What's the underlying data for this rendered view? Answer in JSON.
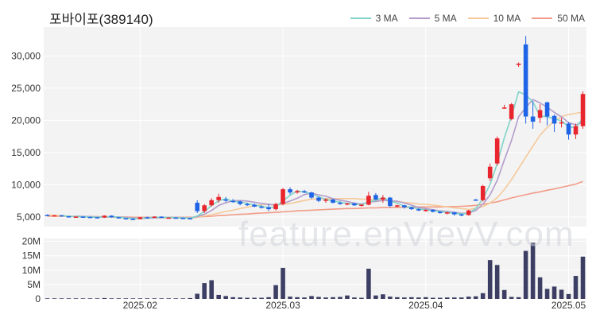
{
  "title": "포바이포(389140)",
  "watermark": "feature.enVievV.com",
  "legend": [
    {
      "label": "3 MA",
      "color": "#7fd3c8"
    },
    {
      "label": "5 MA",
      "color": "#b39ccb"
    },
    {
      "label": "10 MA",
      "color": "#f5c99a"
    },
    {
      "label": "50 MA",
      "color": "#f29b86"
    }
  ],
  "colors": {
    "up": "#e8252d",
    "down": "#1f63e6",
    "volume": "#3c3f63",
    "plot_bg": "#f3f3f3"
  },
  "chart_data": {
    "type": "candlestick",
    "price_axis": {
      "ticks": [
        5000,
        10000,
        15000,
        20000,
        25000,
        30000
      ],
      "tick_labels": [
        "5,000",
        "10,000",
        "15,000",
        "20,000",
        "25,000",
        "30,000"
      ],
      "ylim": [
        3500,
        34500
      ]
    },
    "volume_axis": {
      "ticks": [
        0,
        5,
        10,
        15,
        20
      ],
      "tick_labels": [
        "0",
        "5M",
        "10M",
        "15M",
        "20M"
      ],
      "ylim": [
        0,
        21
      ],
      "unit": "M"
    },
    "x_ticks": [
      {
        "label": "2025.02",
        "index": 13
      },
      {
        "label": "2025.03",
        "index": 33
      },
      {
        "label": "2025.04",
        "index": 53
      },
      {
        "label": "2025.05",
        "index": 73
      }
    ],
    "candles": [
      [
        5300,
        5400,
        5150,
        5200,
        0.2
      ],
      [
        5200,
        5300,
        5100,
        5250,
        0.2
      ],
      [
        5250,
        5300,
        5050,
        5100,
        0.2
      ],
      [
        5100,
        5150,
        4950,
        5000,
        0.2
      ],
      [
        5000,
        5100,
        4900,
        5050,
        0.2
      ],
      [
        5050,
        5100,
        4950,
        5000,
        0.2
      ],
      [
        5000,
        5050,
        4900,
        4950,
        0.2
      ],
      [
        4950,
        5000,
        4850,
        4900,
        0.2
      ],
      [
        4900,
        5250,
        4850,
        5200,
        0.3
      ],
      [
        5200,
        5250,
        4900,
        4950,
        0.2
      ],
      [
        4950,
        5000,
        4750,
        4800,
        0.2
      ],
      [
        4800,
        4850,
        4650,
        4700,
        0.2
      ],
      [
        4700,
        4800,
        4550,
        4650,
        0.2
      ],
      [
        4650,
        5000,
        4600,
        4950,
        0.2
      ],
      [
        4950,
        5050,
        4850,
        4900,
        0.2
      ],
      [
        4900,
        5100,
        4850,
        5050,
        0.2
      ],
      [
        5050,
        5100,
        4800,
        4850,
        0.2
      ],
      [
        4850,
        4950,
        4750,
        4900,
        0.2
      ],
      [
        4900,
        4950,
        4800,
        4850,
        0.2
      ],
      [
        4850,
        4900,
        4750,
        4800,
        0.2
      ],
      [
        4800,
        4850,
        4700,
        4750,
        0.3
      ],
      [
        7200,
        7600,
        5600,
        5900,
        1.8
      ],
      [
        5900,
        7000,
        5600,
        6800,
        5.5
      ],
      [
        6800,
        7900,
        6600,
        7600,
        6.5
      ],
      [
        7600,
        8600,
        7200,
        8100,
        1.4
      ],
      [
        7700,
        8100,
        7300,
        7600,
        1.0
      ],
      [
        7500,
        7800,
        7200,
        7400,
        0.6
      ],
      [
        7400,
        7500,
        6800,
        7000,
        0.5
      ],
      [
        7000,
        7200,
        6700,
        6900,
        0.4
      ],
      [
        6900,
        7100,
        6500,
        6600,
        0.4
      ],
      [
        6600,
        6800,
        6300,
        6500,
        0.4
      ],
      [
        6500,
        7000,
        5900,
        6200,
        0.6
      ],
      [
        6200,
        7200,
        6000,
        7000,
        4.8
      ],
      [
        7000,
        9500,
        6800,
        9300,
        10.8
      ],
      [
        9300,
        9600,
        8500,
        8800,
        0.8
      ],
      [
        8800,
        9200,
        8600,
        9000,
        0.6
      ],
      [
        9000,
        9200,
        8700,
        8800,
        0.5
      ],
      [
        8800,
        8900,
        7800,
        8000,
        1.0
      ],
      [
        8000,
        8200,
        7300,
        7500,
        0.7
      ],
      [
        7500,
        7900,
        7200,
        7700,
        0.5
      ],
      [
        7700,
        7800,
        7100,
        7200,
        0.6
      ],
      [
        7200,
        7400,
        6900,
        7000,
        0.7
      ],
      [
        7000,
        7200,
        6800,
        7100,
        1.2
      ],
      [
        7100,
        7200,
        6700,
        6800,
        0.5
      ],
      [
        6800,
        7000,
        6600,
        6900,
        0.4
      ],
      [
        6900,
        8900,
        6800,
        8300,
        10.5
      ],
      [
        8400,
        8700,
        7600,
        7700,
        1.2
      ],
      [
        7700,
        8400,
        7200,
        8000,
        1.6
      ],
      [
        8000,
        8100,
        6500,
        6700,
        0.8
      ],
      [
        6700,
        6900,
        6400,
        6800,
        0.6
      ],
      [
        6800,
        6900,
        6300,
        6500,
        0.5
      ],
      [
        6500,
        6600,
        6100,
        6200,
        0.6
      ],
      [
        6200,
        6400,
        5900,
        6000,
        0.5
      ],
      [
        6000,
        6200,
        5800,
        6100,
        0.6
      ],
      [
        6100,
        6200,
        5700,
        5800,
        0.4
      ],
      [
        5800,
        5900,
        5500,
        5600,
        0.4
      ],
      [
        5600,
        5800,
        5400,
        5700,
        0.5
      ],
      [
        5700,
        5800,
        5200,
        5400,
        0.5
      ],
      [
        5400,
        5500,
        5100,
        5300,
        0.5
      ],
      [
        5300,
        6100,
        5200,
        6000,
        0.8
      ],
      [
        7700,
        7800,
        7500,
        7600,
        0.9
      ],
      [
        7600,
        10000,
        7400,
        9800,
        2.0
      ],
      [
        11000,
        13300,
        10600,
        12800,
        13.5
      ],
      [
        13300,
        17500,
        13000,
        17200,
        11.8
      ],
      [
        21900,
        22400,
        21800,
        22000,
        3.1
      ],
      [
        20200,
        22700,
        20000,
        22500,
        0.7
      ],
      [
        28600,
        29000,
        28300,
        28800,
        0.6
      ],
      [
        31800,
        33100,
        19500,
        20600,
        16.7
      ],
      [
        20600,
        23000,
        18700,
        19800,
        19.5
      ],
      [
        20400,
        22500,
        19600,
        21600,
        7.5
      ],
      [
        22800,
        22900,
        19200,
        20600,
        3.5
      ],
      [
        20700,
        20900,
        18200,
        19500,
        4.3
      ],
      [
        19600,
        20400,
        18900,
        19700,
        3.2
      ],
      [
        19500,
        19700,
        17000,
        17800,
        1.7
      ],
      [
        17800,
        19500,
        17100,
        19100,
        8.0
      ],
      [
        19100,
        24500,
        18700,
        24100,
        14.7
      ]
    ],
    "moving_averages": {
      "ma3": [
        null,
        null,
        5183,
        5117,
        5050,
        5017,
        5000,
        4950,
        5017,
        5017,
        4983,
        4817,
        4717,
        4767,
        4833,
        4967,
        4933,
        4933,
        4867,
        4850,
        4800,
        5150,
        5833,
        6767,
        7500,
        7833,
        7367,
        7333,
        7100,
        6833,
        6667,
        6433,
        6567,
        7500,
        8367,
        9033,
        8867,
        8600,
        8100,
        7733,
        7467,
        7300,
        7100,
        6967,
        6933,
        7333,
        7600,
        8000,
        7467,
        7167,
        6667,
        6500,
        6233,
        6100,
        5967,
        5833,
        5700,
        5567,
        5467,
        5567,
        6300,
        7800,
        10067,
        13267,
        17333,
        20567,
        24433,
        23967,
        22867,
        20667,
        20567,
        20233,
        19933,
        19000,
        18867,
        20333
      ],
      "ma5": [
        null,
        null,
        null,
        null,
        5120,
        5080,
        5050,
        4980,
        5020,
        5000,
        4970,
        4910,
        4840,
        4790,
        4800,
        4840,
        4890,
        4930,
        4910,
        4890,
        4830,
        5040,
        5410,
        5990,
        6780,
        7200,
        7500,
        7540,
        7460,
        7280,
        7100,
        6940,
        6850,
        7100,
        7460,
        7900,
        8460,
        8700,
        8420,
        8200,
        7840,
        7600,
        7400,
        7150,
        7000,
        7300,
        7400,
        7560,
        7500,
        7450,
        7160,
        6840,
        6460,
        6300,
        6120,
        5940,
        5840,
        5720,
        5560,
        5600,
        6000,
        6980,
        8440,
        10680,
        13880,
        16860,
        20560,
        22000,
        23240,
        22700,
        22040,
        21240,
        20560,
        19640,
        19300,
        19720
      ]
    },
    "ma10": [
      5300,
      5250,
      5200,
      5100,
      5050,
      5050,
      5050,
      5000,
      5000,
      5000,
      4950,
      4900,
      4850,
      4850,
      4850,
      4870,
      4850,
      4850,
      4850,
      4800,
      4800,
      4950,
      5150,
      5350,
      5600,
      5850,
      6050,
      6300,
      6500,
      6750,
      6900,
      6950,
      6850,
      6950,
      7100,
      7300,
      7550,
      7750,
      7850,
      7850,
      7800,
      7850,
      7850,
      7850,
      7750,
      7750,
      7650,
      7600,
      7500,
      7400,
      7250,
      7150,
      7000,
      6950,
      6850,
      6700,
      6550,
      6400,
      6300,
      6150,
      6350,
      6600,
      7150,
      8000,
      9250,
      10800,
      12500,
      14300,
      16000,
      17700,
      18900,
      19900,
      20600,
      20900,
      21100,
      21300
    ],
    "ma50": [
      5100,
      5100,
      5100,
      5100,
      5100,
      5050,
      5050,
      5050,
      5000,
      5000,
      5000,
      5000,
      4950,
      4950,
      4950,
      4950,
      4950,
      4950,
      4950,
      4950,
      4950,
      5000,
      5050,
      5100,
      5200,
      5250,
      5350,
      5400,
      5450,
      5550,
      5600,
      5650,
      5700,
      5800,
      5850,
      5950,
      6000,
      6050,
      6100,
      6150,
      6200,
      6250,
      6300,
      6300,
      6350,
      6400,
      6400,
      6450,
      6450,
      6500,
      6500,
      6500,
      6550,
      6550,
      6550,
      6550,
      6600,
      6600,
      6650,
      6700,
      6800,
      6950,
      7150,
      7350,
      7650,
      7950,
      8200,
      8450,
      8700,
      8900,
      9150,
      9350,
      9600,
      9850,
      10100,
      10500
    ]
  }
}
